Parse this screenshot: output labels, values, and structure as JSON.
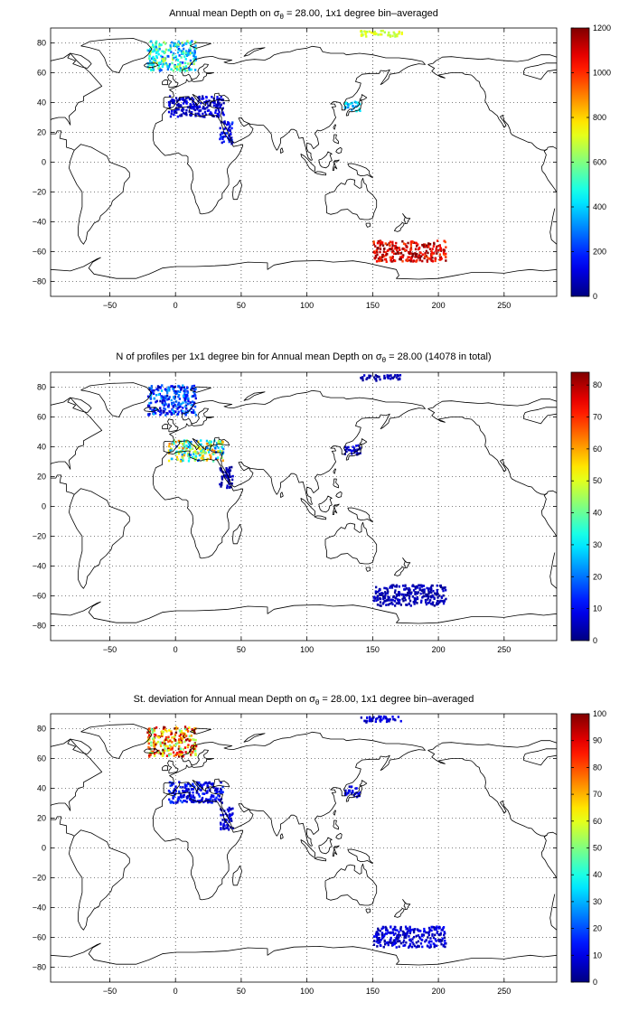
{
  "figure": {
    "panels": [
      {
        "id": "depth",
        "title": "Annual mean Depth on σθ = 28.00, 1x1 degree bin–averaged"
      },
      {
        "id": "count",
        "title": "N of profiles per 1x1 degree bin for Annual mean Depth on σθ = 28.00 (14078 in total)"
      },
      {
        "id": "std",
        "title": "St. deviation for Annual mean Depth on σθ = 28.00, 1x1 degree bin–averaged"
      }
    ]
  },
  "colors": {
    "colormap": "jet",
    "coastline": "#000000",
    "grid": "#000000",
    "background": "#ffffff"
  },
  "chart_data": [
    {
      "type": "heatmap",
      "title_prefix": "Annual mean Depth on ",
      "title_symbol": "σ",
      "title_subscript": "θ",
      "title_suffix": " = 28.00, 1x1 degree bin–averaged",
      "xticks": [
        -50,
        0,
        50,
        100,
        150,
        200,
        250
      ],
      "yticks": [
        80,
        60,
        40,
        20,
        0,
        -20,
        -40,
        -60,
        -80
      ],
      "xlim": [
        -95,
        290
      ],
      "ylim": [
        -90,
        90
      ],
      "grid": true,
      "colorbar": {
        "min": 0,
        "max": 1200,
        "ticks": [
          0,
          200,
          400,
          600,
          800,
          1000,
          1200
        ]
      },
      "data_regions": [
        {
          "name": "Nordic Seas",
          "lon": [
            -22,
            15
          ],
          "lat": [
            62,
            82
          ],
          "value": 450,
          "spread": 250
        },
        {
          "name": "Mediterranean Sea",
          "lon": [
            -6,
            36
          ],
          "lat": [
            31,
            45
          ],
          "value": 90,
          "spread": 60
        },
        {
          "name": "Arctic Ocean (Siberian sector)",
          "lon": [
            140,
            172
          ],
          "lat": [
            85,
            89
          ],
          "value": 700,
          "spread": 80
        },
        {
          "name": "Japan Sea",
          "lon": [
            128,
            140
          ],
          "lat": [
            35,
            42
          ],
          "value": 400,
          "spread": 100
        },
        {
          "name": "Red Sea",
          "lon": [
            33,
            43
          ],
          "lat": [
            13,
            28
          ],
          "value": 150,
          "spread": 80
        },
        {
          "name": "Southern Ocean (Ross Sea sector)",
          "lon": [
            150,
            205
          ],
          "lat": [
            -66,
            -52
          ],
          "value": 1100,
          "spread": 150
        }
      ]
    },
    {
      "type": "heatmap",
      "title_prefix": "N of profiles per 1x1 degree bin for Annual mean Depth on ",
      "title_symbol": "σ",
      "title_subscript": "θ",
      "title_suffix": " = 28.00 (14078 in total)",
      "xticks": [
        -50,
        0,
        50,
        100,
        150,
        200,
        250
      ],
      "yticks": [
        80,
        60,
        40,
        20,
        0,
        -20,
        -40,
        -60,
        -80
      ],
      "xlim": [
        -95,
        290
      ],
      "ylim": [
        -90,
        90
      ],
      "grid": true,
      "colorbar": {
        "min": 0,
        "max": 84,
        "ticks": [
          0,
          10,
          20,
          30,
          40,
          50,
          60,
          70,
          80
        ]
      },
      "data_regions": [
        {
          "name": "Nordic Seas",
          "lon": [
            -22,
            15
          ],
          "lat": [
            62,
            82
          ],
          "value": 15,
          "spread": 12
        },
        {
          "name": "Mediterranean Sea",
          "lon": [
            -6,
            36
          ],
          "lat": [
            31,
            45
          ],
          "value": 40,
          "spread": 25
        },
        {
          "name": "Arctic Ocean (Siberian sector)",
          "lon": [
            140,
            172
          ],
          "lat": [
            85,
            89
          ],
          "value": 4,
          "spread": 3
        },
        {
          "name": "Japan Sea",
          "lon": [
            128,
            140
          ],
          "lat": [
            35,
            42
          ],
          "value": 6,
          "spread": 4
        },
        {
          "name": "Red Sea",
          "lon": [
            33,
            43
          ],
          "lat": [
            13,
            28
          ],
          "value": 4,
          "spread": 3
        },
        {
          "name": "Southern Ocean (Ross Sea sector)",
          "lon": [
            150,
            205
          ],
          "lat": [
            -66,
            -52
          ],
          "value": 4,
          "spread": 3
        }
      ]
    },
    {
      "type": "heatmap",
      "title_prefix": "St. deviation for Annual mean Depth on ",
      "title_symbol": "σ",
      "title_subscript": "θ",
      "title_suffix": " = 28.00, 1x1 degree bin–averaged",
      "xticks": [
        -50,
        0,
        50,
        100,
        150,
        200,
        250
      ],
      "yticks": [
        80,
        60,
        40,
        20,
        0,
        -20,
        -40,
        -60,
        -80
      ],
      "xlim": [
        -95,
        290
      ],
      "ylim": [
        -90,
        90
      ],
      "grid": true,
      "colorbar": {
        "min": 0,
        "max": 100,
        "ticks": [
          0,
          10,
          20,
          30,
          40,
          50,
          60,
          70,
          80,
          90,
          100
        ]
      },
      "data_regions": [
        {
          "name": "Nordic Seas",
          "lon": [
            -22,
            15
          ],
          "lat": [
            62,
            82
          ],
          "value": 75,
          "spread": 30
        },
        {
          "name": "Mediterranean Sea",
          "lon": [
            -6,
            36
          ],
          "lat": [
            31,
            45
          ],
          "value": 12,
          "spread": 8
        },
        {
          "name": "Arctic Ocean (Siberian sector)",
          "lon": [
            140,
            172
          ],
          "lat": [
            85,
            89
          ],
          "value": 8,
          "spread": 5
        },
        {
          "name": "Japan Sea",
          "lon": [
            128,
            140
          ],
          "lat": [
            35,
            42
          ],
          "value": 10,
          "spread": 6
        },
        {
          "name": "Red Sea",
          "lon": [
            33,
            43
          ],
          "lat": [
            13,
            28
          ],
          "value": 8,
          "spread": 5
        },
        {
          "name": "Southern Ocean (Ross Sea sector)",
          "lon": [
            150,
            205
          ],
          "lat": [
            -66,
            -52
          ],
          "value": 8,
          "spread": 6
        }
      ]
    }
  ]
}
